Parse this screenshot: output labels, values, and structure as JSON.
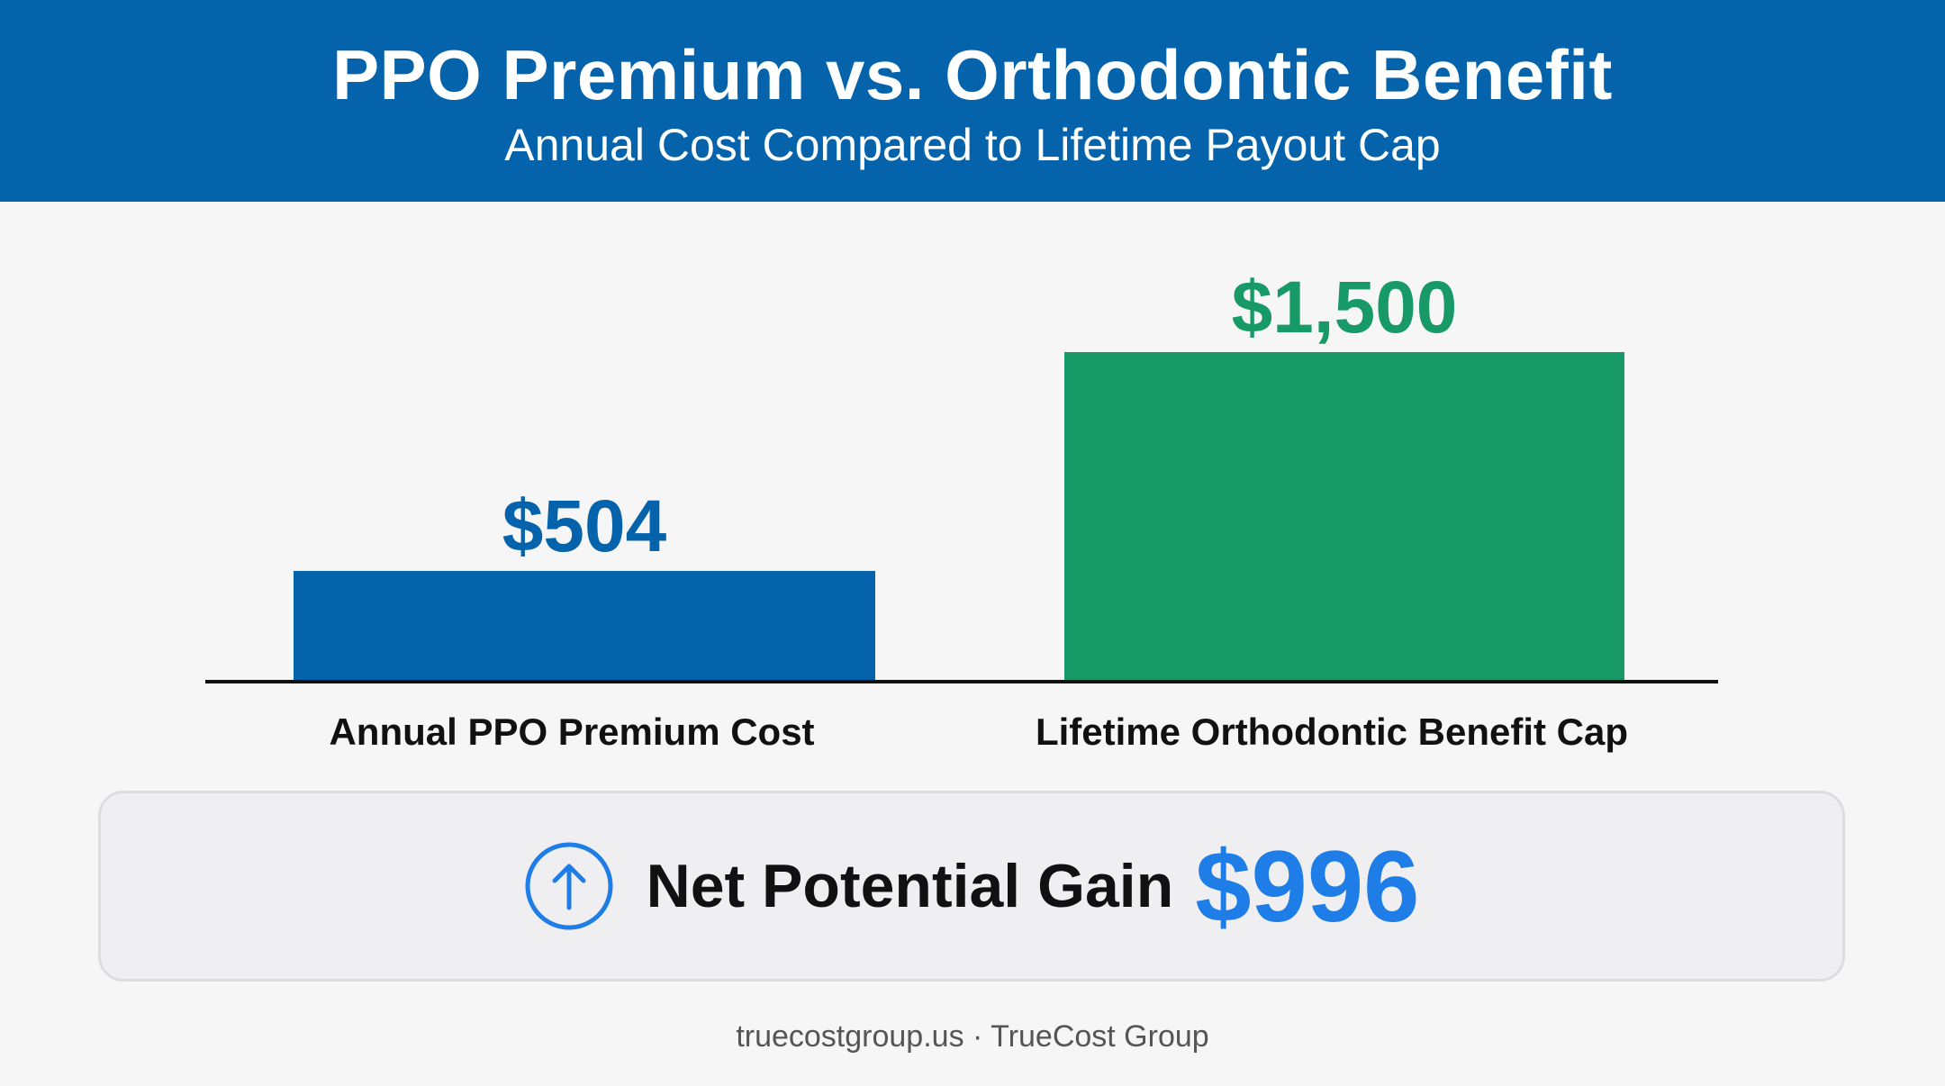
{
  "header": {
    "title": "PPO Premium vs. Orthodontic Benefit",
    "subtitle": "Annual Cost Compared to Lifetime Payout Cap"
  },
  "chart_data": {
    "type": "bar",
    "categories": [
      "Annual PPO Premium Cost",
      "Lifetime Orthodontic Benefit Cap"
    ],
    "values": [
      504,
      1500
    ],
    "value_labels": [
      "$504",
      "$1,500"
    ],
    "colors": [
      "#0563ac",
      "#179968"
    ],
    "ylim": [
      0,
      1500
    ],
    "grid": false
  },
  "summary": {
    "label": "Net Potential Gain",
    "value": "$996",
    "icon": "arrow-up-circle-icon",
    "accent": "#1e7de6"
  },
  "footer": {
    "text": "truecostgroup.us · TrueCost Group"
  },
  "colors": {
    "header_bg": "#0563ac",
    "page_bg": "#f6f6f6"
  }
}
